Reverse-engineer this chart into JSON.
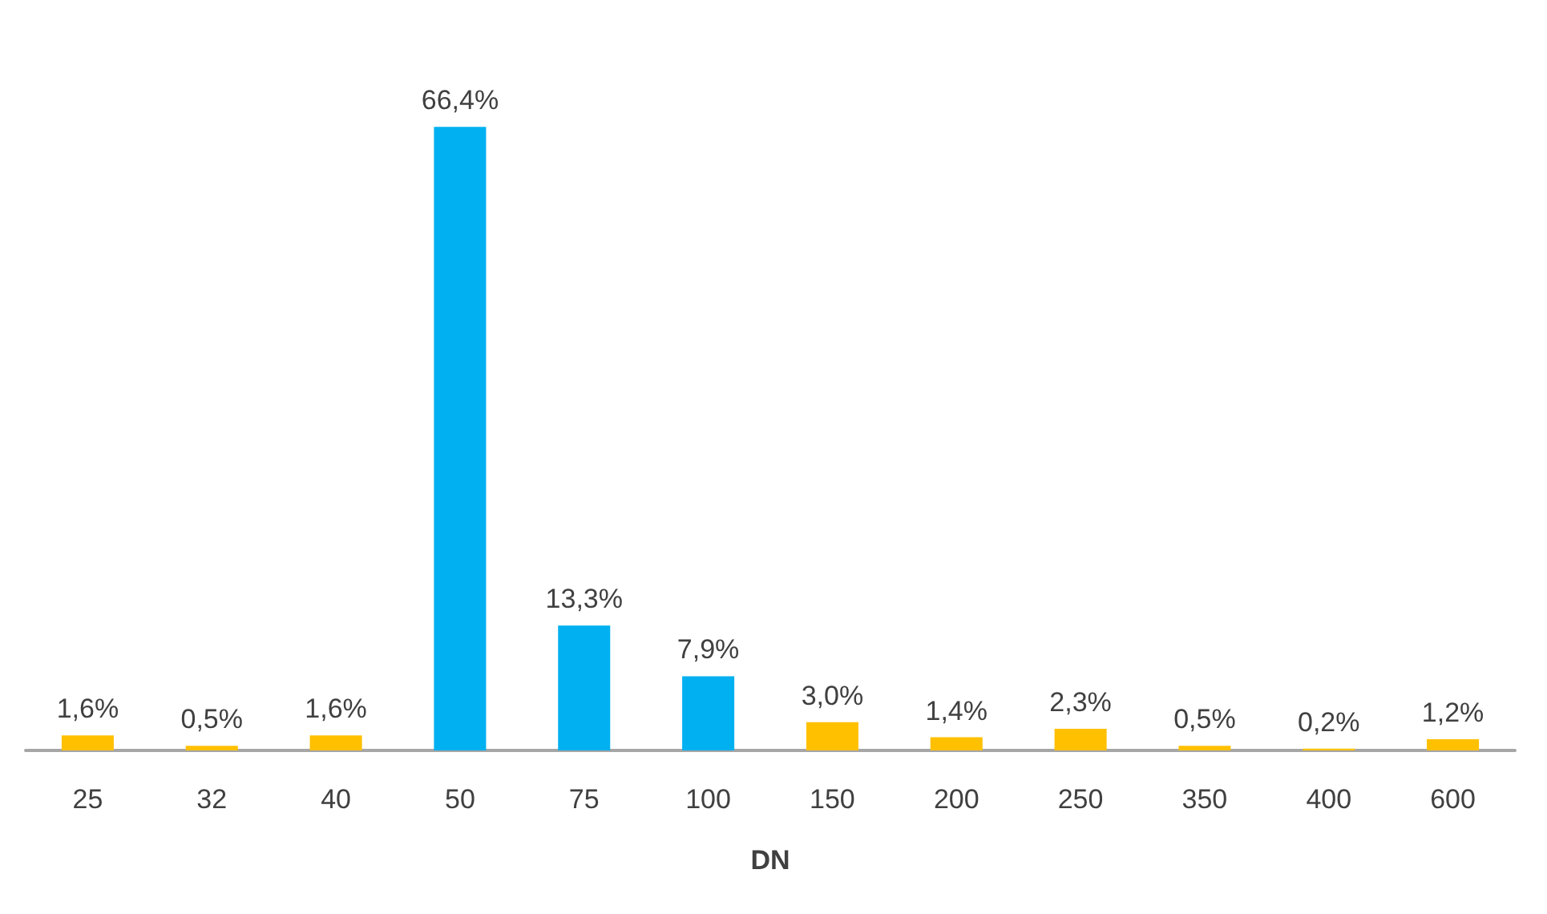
{
  "chart_data": {
    "type": "bar",
    "xlabel": "DN",
    "categories": [
      "25",
      "32",
      "40",
      "50",
      "75",
      "100",
      "150",
      "200",
      "250",
      "350",
      "400",
      "600"
    ],
    "values": [
      1.6,
      0.5,
      1.6,
      66.4,
      13.3,
      7.9,
      3.0,
      1.4,
      2.3,
      0.5,
      0.2,
      1.2
    ],
    "colors": [
      "#ffc000",
      "#ffc000",
      "#ffc000",
      "#00b0f0",
      "#00b0f0",
      "#00b0f0",
      "#ffc000",
      "#ffc000",
      "#ffc000",
      "#ffc000",
      "#ffc000",
      "#ffc000"
    ],
    "value_labels": [
      "1,6%",
      "0,5%",
      "1,6%",
      "66,4%",
      "13,3%",
      "7,9%",
      "3,0%",
      "1,4%",
      "2,3%",
      "0,5%",
      "0,2%",
      "1,2%"
    ]
  }
}
